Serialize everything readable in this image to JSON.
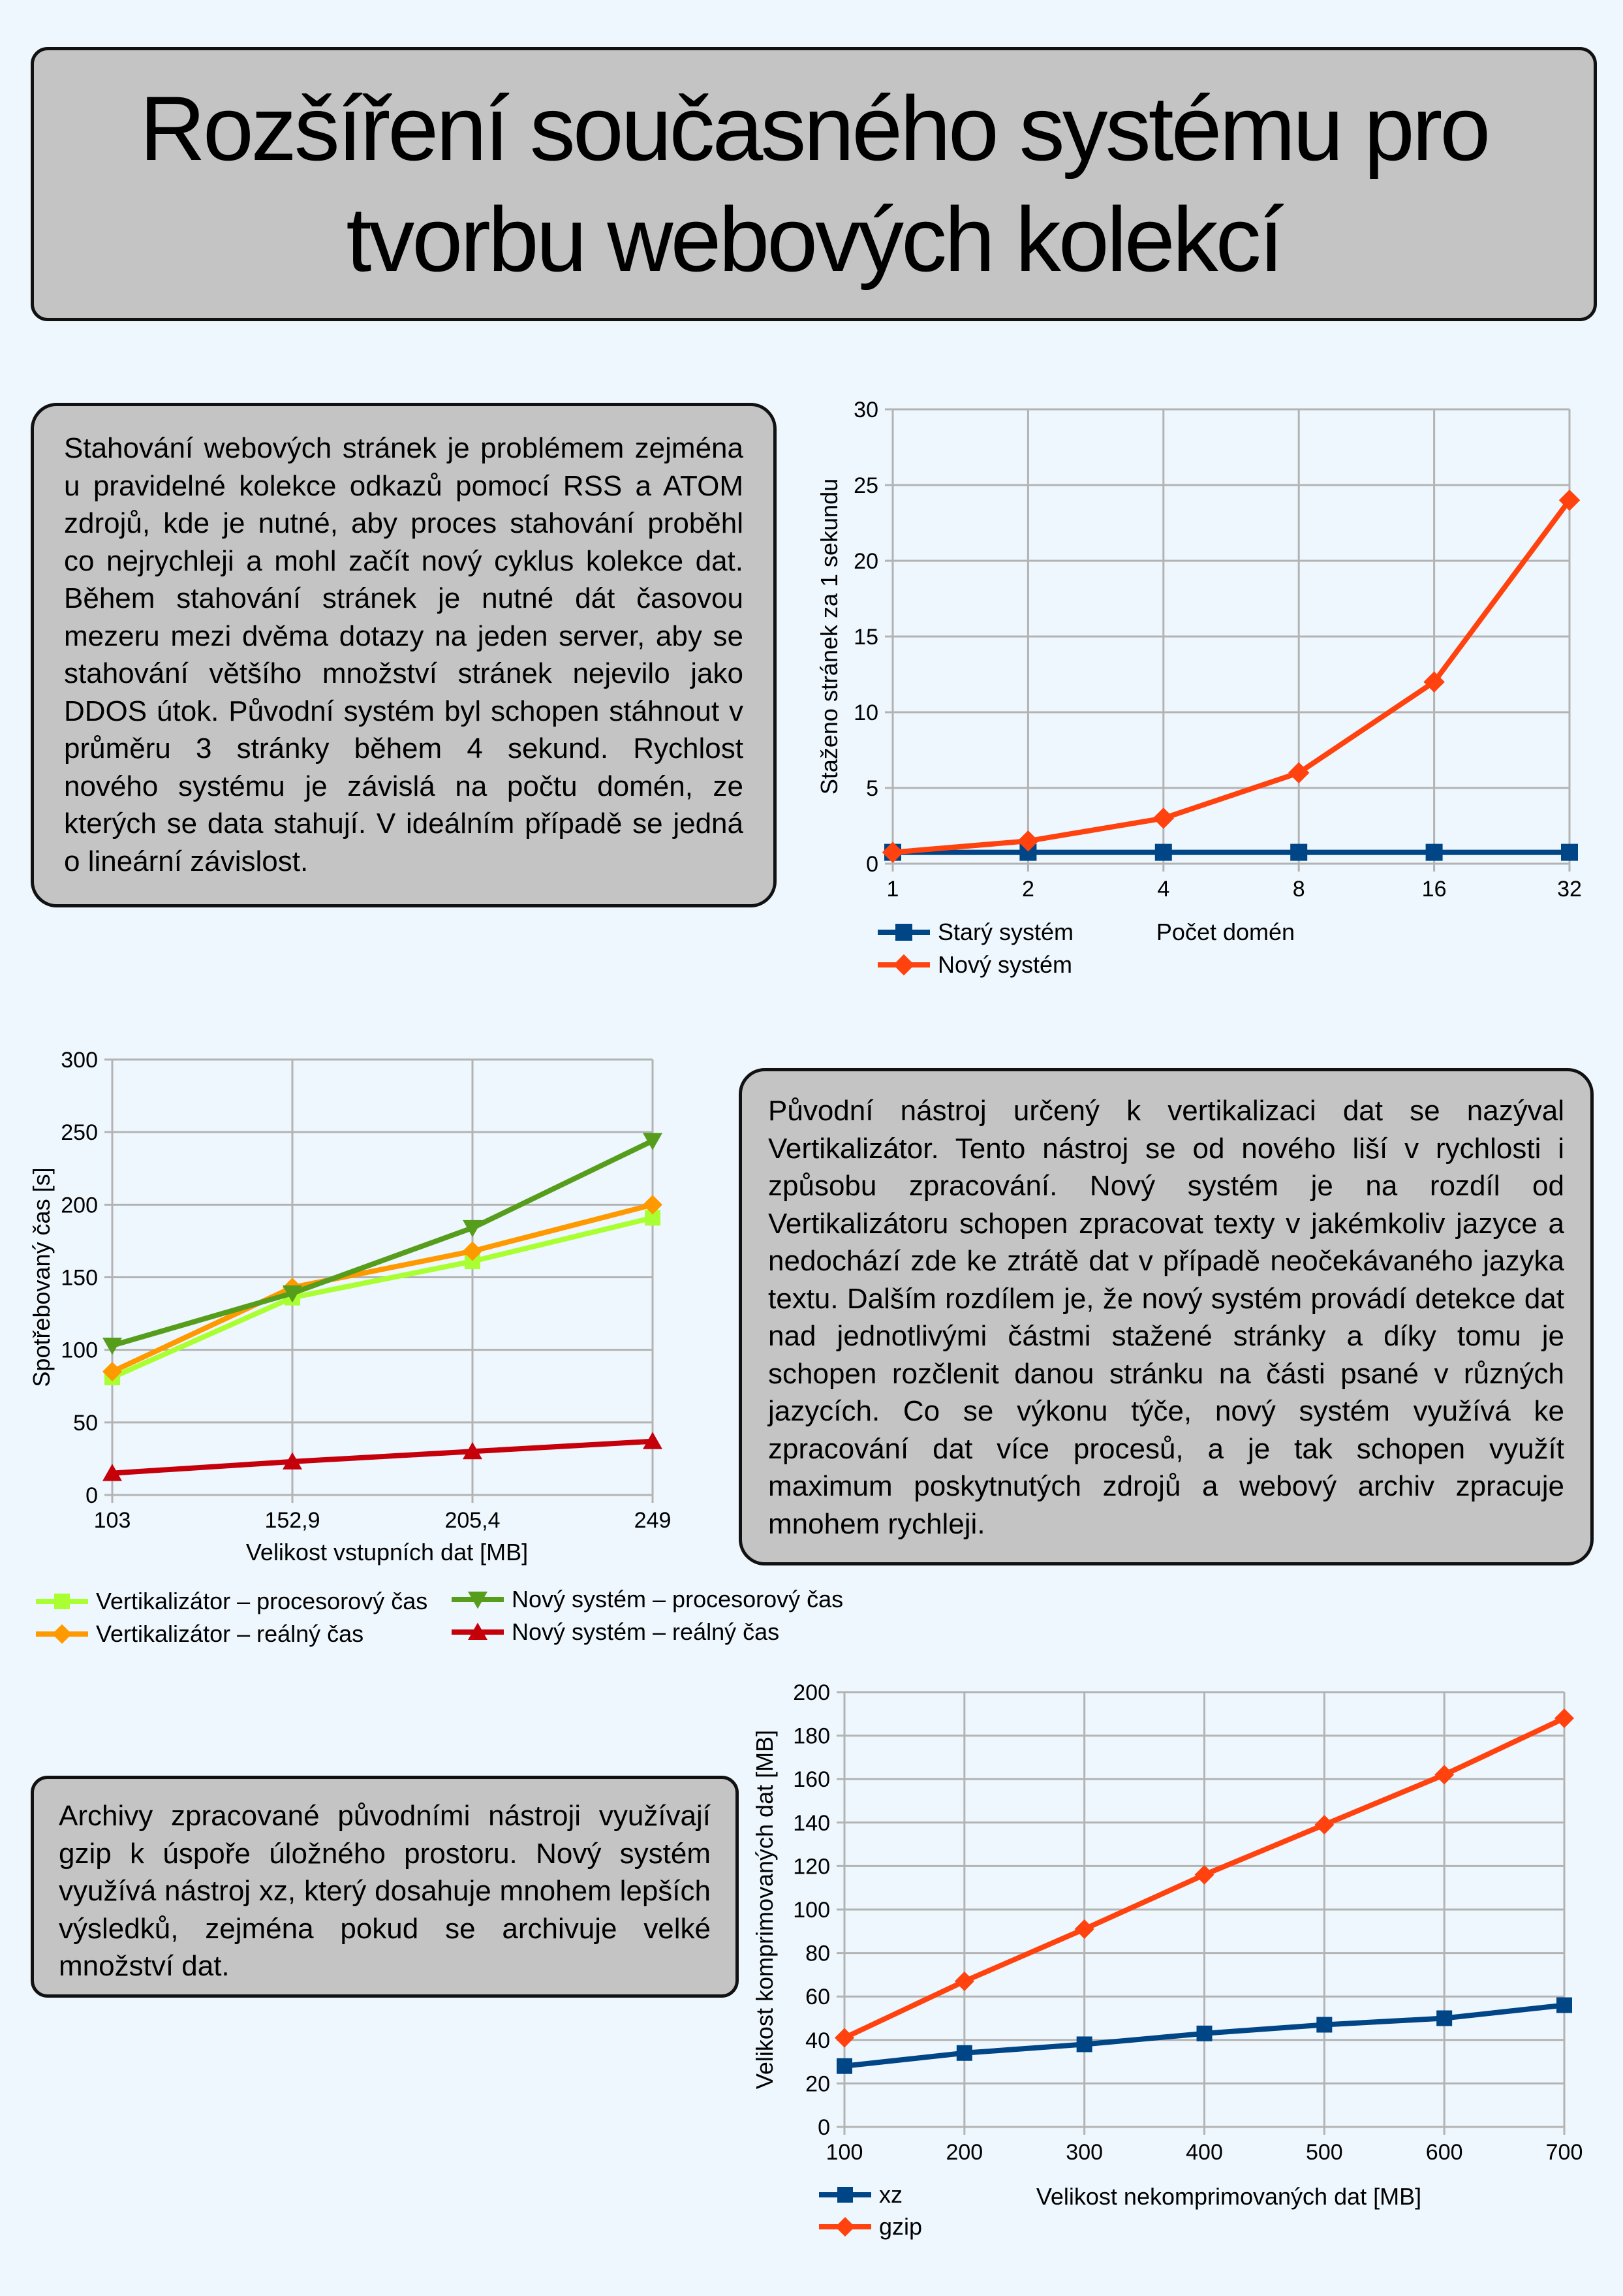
{
  "title": "Rozšíření současného systému pro tvorbu webových kolekcí",
  "paragraphs": {
    "p1": "Stahování webových stránek je problémem zejména u pravidelné kolekce odkazů pomocí RSS a ATOM zdrojů, kde je nutné, aby proces stahování proběhl co nejrychleji a mohl začít nový cyklus kolekce dat. Během stahování stránek je nutné dát časovou mezeru mezi dvěma dotazy na jeden server, aby se stahování většího množství stránek nejevilo jako DDOS útok. Původní systém byl schopen stáhnout v průměru 3 stránky během 4 sekund. Rychlost nového systému je závislá na počtu domén, ze kterých se data stahují. V ideálním případě se jedná o lineární závislost.",
    "p2": "Původní nástroj určený k vertikalizaci dat se nazýval Vertikalizátor.  Tento nástroj se od nového liší v rychlosti i způsobu zpracování. Nový systém je na rozdíl od Vertikalizátoru schopen zpracovat texty v jakémkoliv jazyce a nedochází zde ke ztrátě dat v případě neočekávaného jazyka textu. Dalším rozdílem je, že nový systém provádí detekce dat nad jednotlivými částmi stažené stránky a díky tomu je schopen rozčlenit danou stránku na části psané v různých jazycích. Co se výkonu týče, nový systém využívá ke zpracování dat více procesů, a je tak schopen využít maximum poskytnutých zdrojů a webový archiv zpracuje mnohem rychleji.",
    "p3": "Archivy zpracované původními nástroji využívají gzip k úspoře úložného prostoru. Nový systém využívá nástroj xz, který dosahuje mnohem lepších výsledků, zejména pokud se archivuje velké množství dat."
  },
  "chart_data": [
    {
      "type": "line",
      "categories": [
        "1",
        "2",
        "4",
        "8",
        "16",
        "32"
      ],
      "xlabel": "Počet domén",
      "ylabel": "Staženo stránek za 1 sekundu",
      "ylim": [
        0,
        30
      ],
      "yticks": [
        "0",
        "5",
        "10",
        "15",
        "20",
        "25",
        "30"
      ],
      "grid": true,
      "legend": "bottom-left",
      "series": [
        {
          "name": "Starý systém",
          "values": [
            0.75,
            0.75,
            0.75,
            0.75,
            0.75,
            0.75
          ],
          "color": "#004586",
          "marker": "square"
        },
        {
          "name": "Nový systém",
          "values": [
            0.75,
            1.5,
            3,
            6,
            12,
            24
          ],
          "color": "#ff420e",
          "marker": "diamond"
        }
      ]
    },
    {
      "type": "line",
      "categories": [
        "103",
        "152,9",
        "205,4",
        "249"
      ],
      "xlabel": "Velikost vstupních dat [MB]",
      "ylabel": "Spotřebovaný čas [s]",
      "ylim": [
        0,
        300
      ],
      "yticks": [
        "0",
        "50",
        "100",
        "150",
        "200",
        "250",
        "300"
      ],
      "grid": true,
      "legend": "bottom",
      "series": [
        {
          "name": "Vertikalizátor – procesorový čas",
          "values": [
            81,
            136,
            161,
            191
          ],
          "color": "#aaff33",
          "marker": "square"
        },
        {
          "name": "Vertikalizátor – reálný čas",
          "values": [
            85,
            143,
            168,
            200
          ],
          "color": "#ff9900",
          "marker": "diamond"
        },
        {
          "name": "Nový systém – procesorový čas",
          "values": [
            103,
            139,
            184,
            244
          ],
          "color": "#579d1c",
          "marker": "triangle-down"
        },
        {
          "name": "Nový systém – reálný čas",
          "values": [
            15,
            23,
            30,
            37
          ],
          "color": "#c5000b",
          "marker": "triangle-up"
        }
      ]
    },
    {
      "type": "line",
      "categories": [
        "100",
        "200",
        "300",
        "400",
        "500",
        "600",
        "700"
      ],
      "xlabel": "Velikost nekomprimovaných dat [MB]",
      "ylabel": "Velikost komprimovaných dat [MB]",
      "ylim": [
        0,
        200
      ],
      "yticks": [
        "0",
        "20",
        "40",
        "60",
        "80",
        "100",
        "120",
        "140",
        "160",
        "180",
        "200"
      ],
      "grid": true,
      "legend": "bottom-left",
      "series": [
        {
          "name": "xz",
          "values": [
            28,
            34,
            38,
            43,
            47,
            50,
            56
          ],
          "color": "#004586",
          "marker": "square"
        },
        {
          "name": "gzip",
          "values": [
            41,
            67,
            91,
            116,
            139,
            162,
            188
          ],
          "color": "#ff420e",
          "marker": "diamond"
        }
      ]
    }
  ]
}
